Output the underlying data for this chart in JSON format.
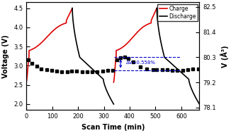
{
  "xlabel": "Scan Time (min)",
  "ylabel_left": "Voltage (V)",
  "ylabel_right": "V (Å³)",
  "xlim": [
    0,
    670
  ],
  "ylim_left": [
    1.85,
    4.65
  ],
  "ylim_right": [
    78.0,
    82.7
  ],
  "xticks": [
    0,
    100,
    200,
    300,
    400,
    500,
    600
  ],
  "yticks_left": [
    2.0,
    2.5,
    3.0,
    3.5,
    4.0,
    4.5
  ],
  "yticks_right": [
    78.1,
    79.2,
    80.3,
    81.4,
    82.5
  ],
  "charge_color": "#dd0000",
  "discharge_color": "#000000",
  "annotation_color": "#0000cc",
  "annotation_text": "ΔV=0.558%",
  "legend_charge": "Charge",
  "legend_discharge": "Discharge",
  "figsize": [
    3.26,
    1.89
  ],
  "dpi": 100
}
